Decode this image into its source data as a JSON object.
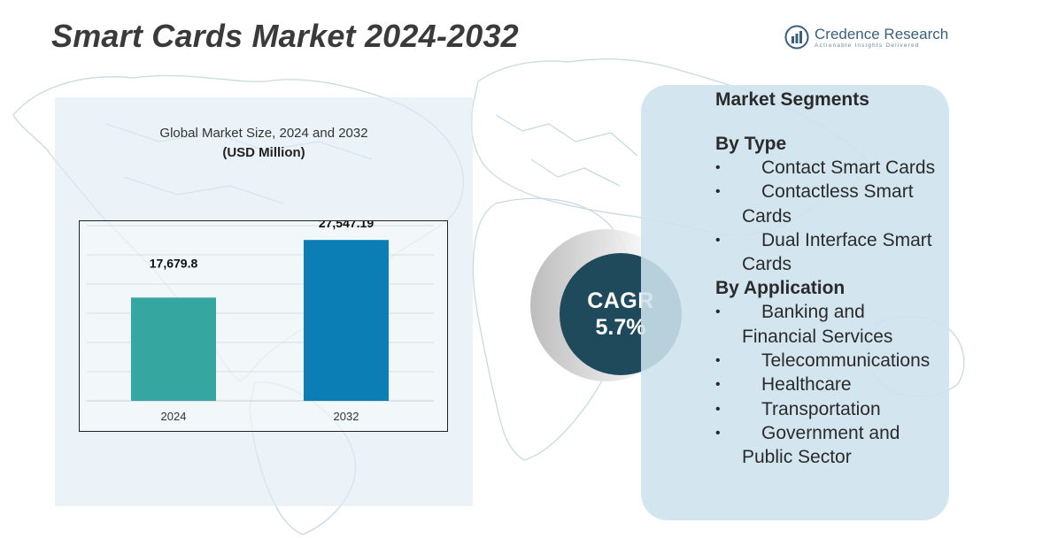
{
  "header": {
    "title": "Smart Cards Market  2024-2032"
  },
  "logo": {
    "name": "Credence Research",
    "tagline": "Actionable Insights Delivered"
  },
  "chart_data": {
    "type": "bar",
    "title": "Global Market Size, 2024 and 2032",
    "unit_label": "(USD Million)",
    "categories": [
      "2024",
      "2032"
    ],
    "values": [
      17679.8,
      27547.19
    ],
    "value_labels": [
      "17,679.8",
      "27,547.19"
    ],
    "colors": [
      "#36a6a0",
      "#0b7fb5"
    ],
    "xlabel": "",
    "ylabel": "",
    "ylim": [
      0,
      30000
    ],
    "grid": true,
    "legend": "none"
  },
  "cagr": {
    "label": "CAGR",
    "value": "5.7%"
  },
  "segments": {
    "title": "Market Segments",
    "groups": [
      {
        "heading": "By Type",
        "items": [
          "Contact Smart Cards",
          "Contactless Smart Cards",
          "Dual Interface Smart Cards"
        ]
      },
      {
        "heading": "By Application",
        "items": [
          "Banking and Financial Services",
          "Telecommunications",
          "Healthcare",
          "Transportation",
          "Government and Public Sector"
        ]
      }
    ],
    "bullet": "•"
  },
  "colors": {
    "accent_dark": "#1e4a5c",
    "panel_light": "#dfebf3",
    "segment_panel": "#cde3ee"
  }
}
